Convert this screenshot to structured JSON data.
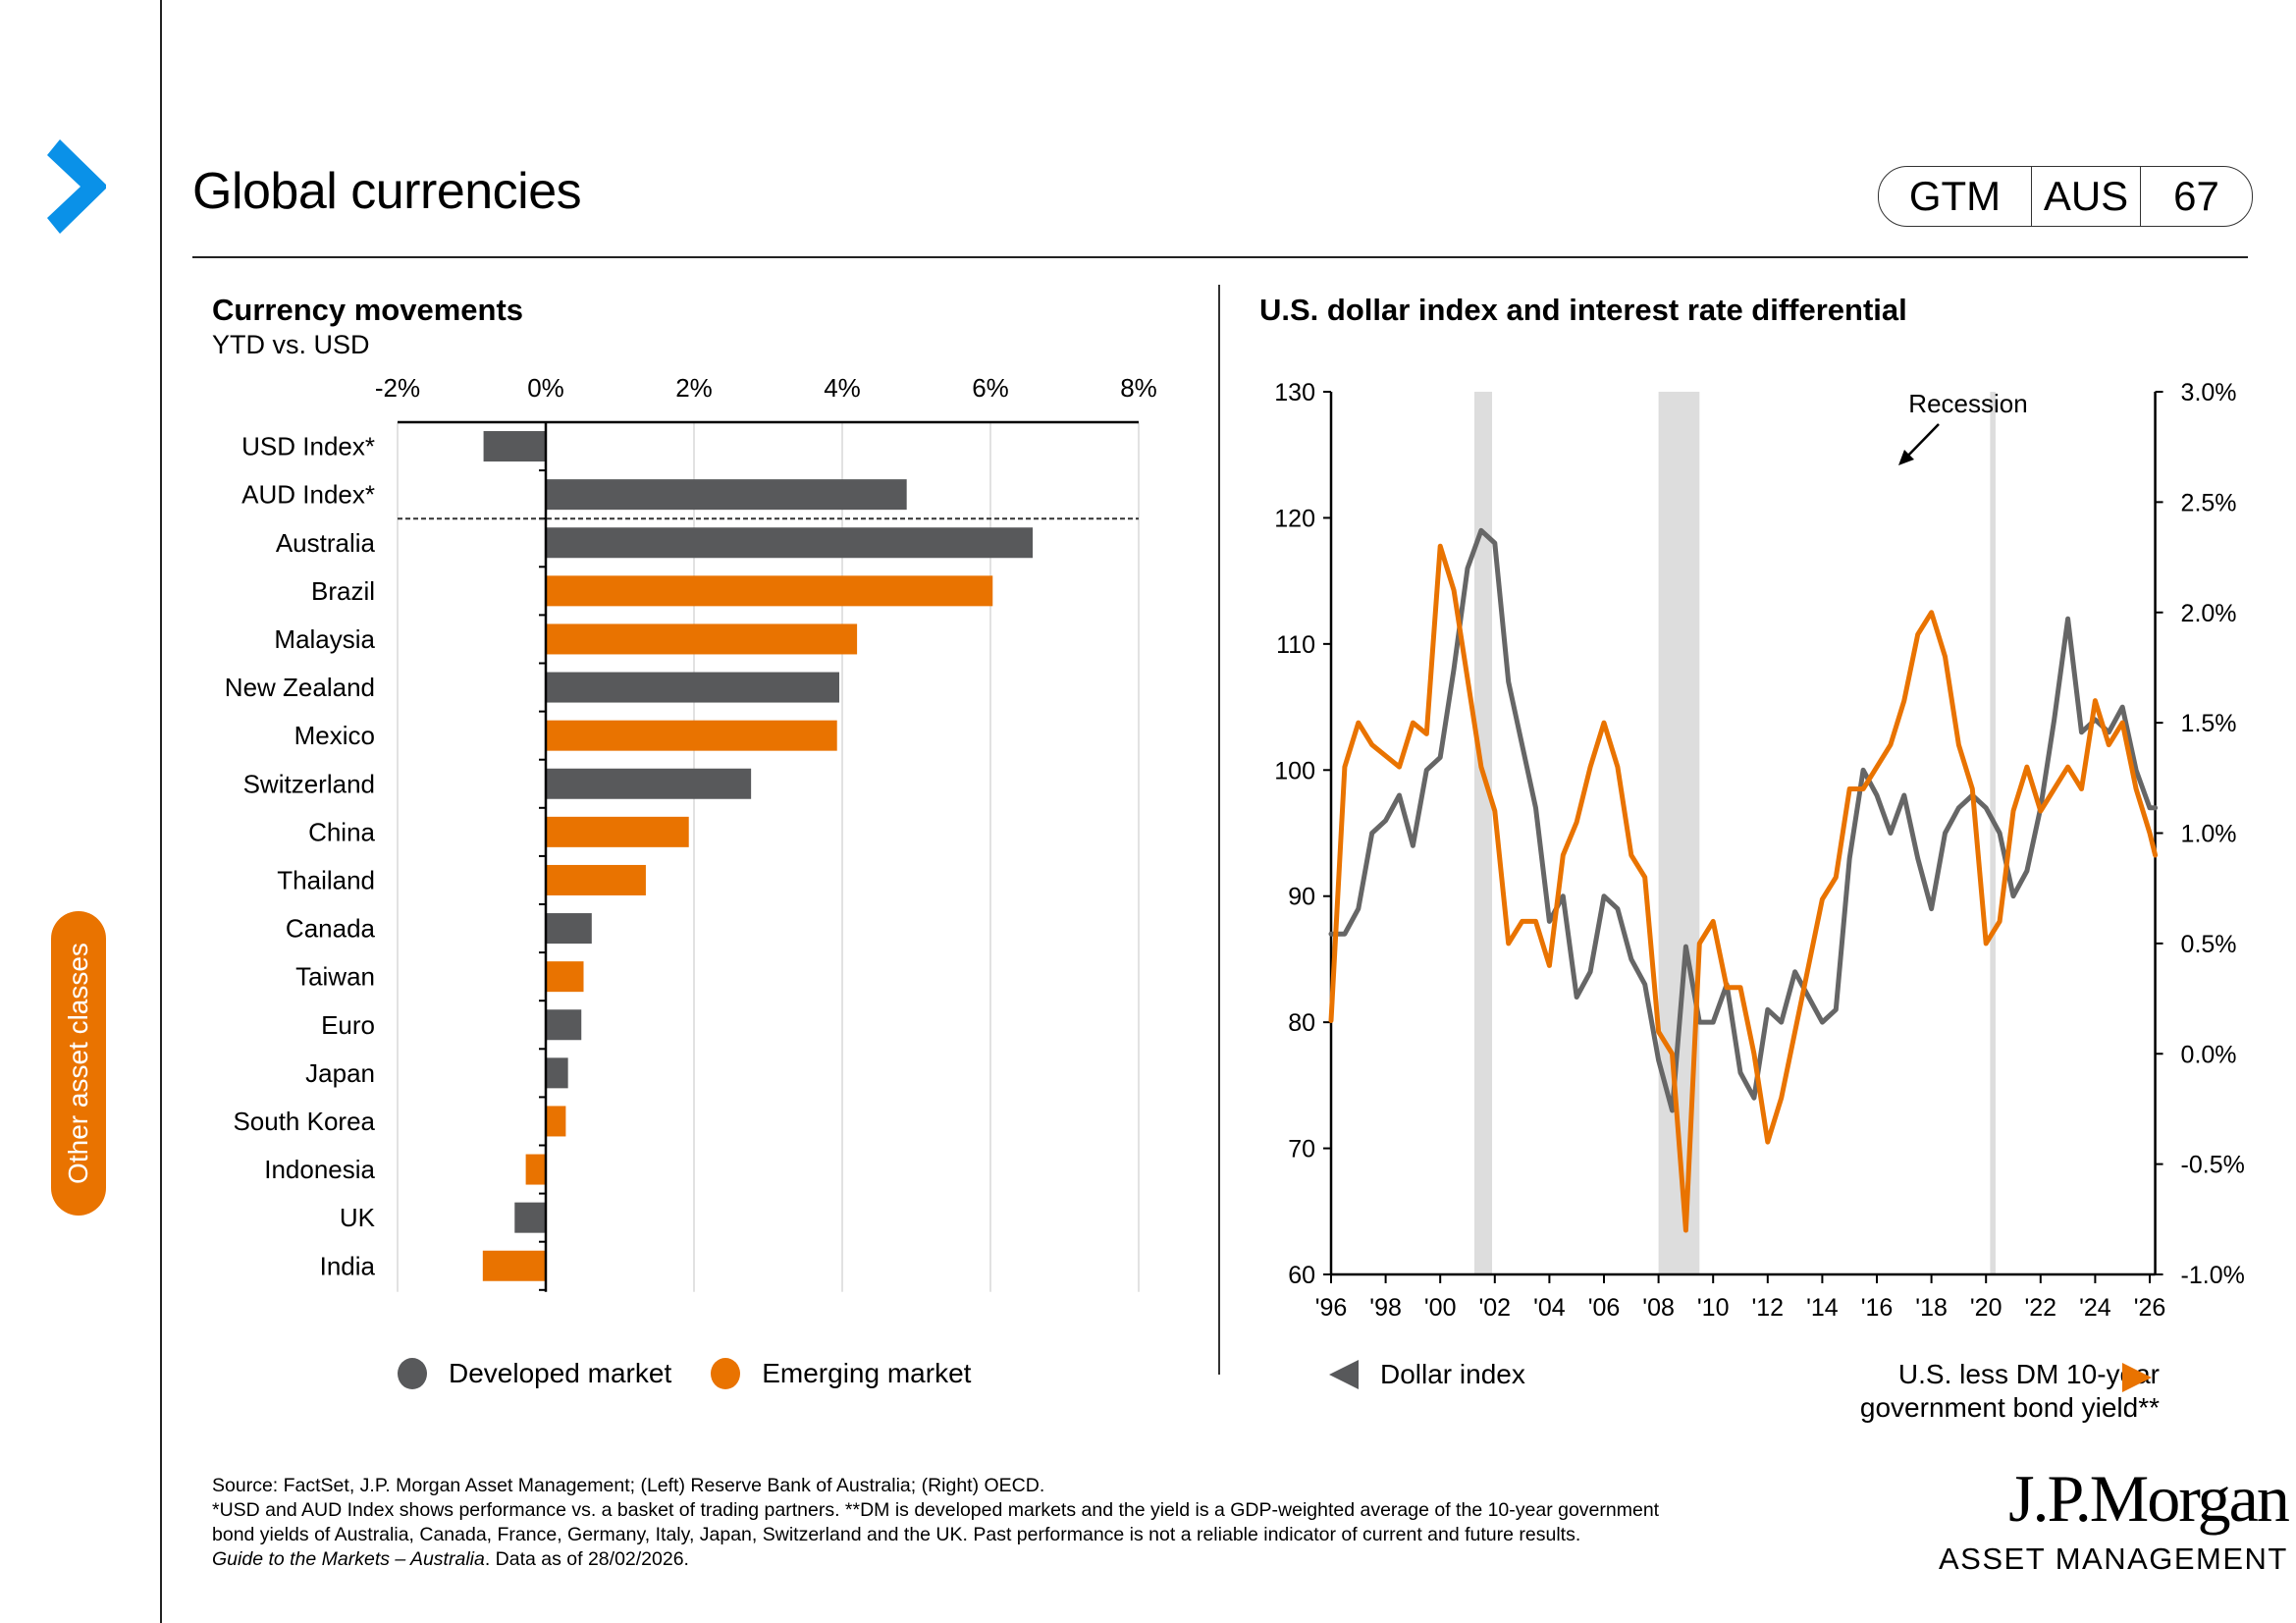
{
  "header": {
    "title": "Global currencies",
    "badge": {
      "series": "GTM",
      "region": "AUS",
      "page": "67"
    }
  },
  "sidebar": {
    "tab_label": "Other asset classes"
  },
  "colors": {
    "developed": "#58595b",
    "emerging": "#e97300",
    "accent_blue": "#0a91e8",
    "recession": "#dddddd",
    "dollar_line": "#666666"
  },
  "left_chart": {
    "title": "Currency movements",
    "subtitle": "YTD vs. USD",
    "legend": [
      {
        "label": "Developed market",
        "color": "#58595b"
      },
      {
        "label": "Emerging market",
        "color": "#e97300"
      }
    ]
  },
  "right_chart": {
    "title": "U.S. dollar index and interest rate differential",
    "annotation": "Recession",
    "legend_left": "Dollar index",
    "legend_right_line1": "U.S. less DM 10-year",
    "legend_right_line2": "government bond yield**"
  },
  "chart_data": [
    {
      "type": "bar",
      "orientation": "horizontal",
      "title": "Currency movements",
      "subtitle": "YTD vs. USD",
      "xlabel": "",
      "ylabel": "",
      "xlim": [
        -2,
        8
      ],
      "x_ticks": [
        "-2%",
        "0%",
        "2%",
        "4%",
        "6%",
        "8%"
      ],
      "x_tick_values": [
        -2,
        0,
        2,
        4,
        6,
        8
      ],
      "grid": true,
      "separator_after_index": 1,
      "categories": [
        "USD Index*",
        "AUD Index*",
        "Australia",
        "Brazil",
        "Malaysia",
        "New Zealand",
        "Mexico",
        "Switzerland",
        "China",
        "Thailand",
        "Canada",
        "Taiwan",
        "Euro",
        "Japan",
        "South Korea",
        "Indonesia",
        "UK",
        "India"
      ],
      "values": [
        -0.84,
        4.87,
        6.57,
        6.03,
        4.2,
        3.96,
        3.93,
        2.77,
        1.93,
        1.35,
        0.62,
        0.51,
        0.48,
        0.3,
        0.27,
        -0.27,
        -0.42,
        -0.85
      ],
      "groups": [
        "Developed market",
        "Developed market",
        "Developed market",
        "Emerging market",
        "Emerging market",
        "Developed market",
        "Emerging market",
        "Developed market",
        "Emerging market",
        "Emerging market",
        "Developed market",
        "Emerging market",
        "Developed market",
        "Developed market",
        "Emerging market",
        "Emerging market",
        "Developed market",
        "Emerging market"
      ],
      "legend": [
        "Developed market",
        "Emerging market"
      ],
      "legend_position": "bottom"
    },
    {
      "type": "line",
      "title": "U.S. dollar index and interest rate differential",
      "x_ticks": [
        "'96",
        "'98",
        "'00",
        "'02",
        "'04",
        "'06",
        "'08",
        "'10",
        "'12",
        "'14",
        "'16",
        "'18",
        "'20",
        "'22",
        "'24",
        "'26"
      ],
      "xlim": [
        1996,
        2026.2
      ],
      "ylim_left": [
        60,
        130
      ],
      "y_ticks_left": [
        "60",
        "70",
        "80",
        "90",
        "100",
        "110",
        "120",
        "130"
      ],
      "y_tick_values_left": [
        60,
        70,
        80,
        90,
        100,
        110,
        120,
        130
      ],
      "ylim_right": [
        -1.0,
        3.0
      ],
      "y_ticks_right": [
        "-1.0%",
        "-0.5%",
        "0.0%",
        "0.5%",
        "1.0%",
        "1.5%",
        "2.0%",
        "2.5%",
        "3.0%"
      ],
      "y_tick_values_right": [
        -1.0,
        -0.5,
        0.0,
        0.5,
        1.0,
        1.5,
        2.0,
        2.5,
        3.0
      ],
      "recessions": [
        [
          2001.25,
          2001.9
        ],
        [
          2008.0,
          2009.5
        ],
        [
          2020.15,
          2020.35
        ]
      ],
      "annotation": "Recession",
      "legend_position": "bottom",
      "series": [
        {
          "name": "Dollar index",
          "axis": "left",
          "color": "#666666",
          "x": [
            1996.0,
            1996.5,
            1997.0,
            1997.5,
            1998.0,
            1998.5,
            1999.0,
            1999.5,
            2000.0,
            2000.5,
            2001.0,
            2001.5,
            2002.0,
            2002.5,
            2003.0,
            2003.5,
            2004.0,
            2004.5,
            2005.0,
            2005.5,
            2006.0,
            2006.5,
            2007.0,
            2007.5,
            2008.0,
            2008.5,
            2009.0,
            2009.5,
            2010.0,
            2010.5,
            2011.0,
            2011.5,
            2012.0,
            2012.5,
            2013.0,
            2013.5,
            2014.0,
            2014.5,
            2015.0,
            2015.5,
            2016.0,
            2016.5,
            2017.0,
            2017.5,
            2018.0,
            2018.5,
            2019.0,
            2019.5,
            2020.0,
            2020.5,
            2021.0,
            2021.5,
            2022.0,
            2022.5,
            2023.0,
            2023.5,
            2024.0,
            2024.5,
            2025.0,
            2025.5,
            2026.0,
            2026.2
          ],
          "y": [
            87,
            87,
            89,
            95,
            96,
            98,
            94,
            100,
            101,
            108,
            116,
            119,
            118,
            107,
            102,
            97,
            88,
            90,
            82,
            84,
            90,
            89,
            85,
            83,
            77,
            73,
            86,
            80,
            80,
            83,
            76,
            74,
            81,
            80,
            84,
            82,
            80,
            81,
            93,
            100,
            98,
            95,
            98,
            93,
            89,
            95,
            97,
            98,
            97,
            95,
            90,
            92,
            97,
            104,
            112,
            103,
            104,
            103,
            105,
            100,
            97,
            97
          ]
        },
        {
          "name": "U.S. less DM 10-year government bond yield**",
          "axis": "right",
          "color": "#e97300",
          "x": [
            1996.0,
            1996.5,
            1997.0,
            1997.5,
            1998.0,
            1998.5,
            1999.0,
            1999.5,
            2000.0,
            2000.5,
            2001.0,
            2001.5,
            2002.0,
            2002.5,
            2003.0,
            2003.5,
            2004.0,
            2004.5,
            2005.0,
            2005.5,
            2006.0,
            2006.5,
            2007.0,
            2007.5,
            2008.0,
            2008.5,
            2009.0,
            2009.5,
            2010.0,
            2010.5,
            2011.0,
            2011.5,
            2012.0,
            2012.5,
            2013.0,
            2013.5,
            2014.0,
            2014.5,
            2015.0,
            2015.5,
            2016.0,
            2016.5,
            2017.0,
            2017.5,
            2018.0,
            2018.5,
            2019.0,
            2019.5,
            2020.0,
            2020.5,
            2021.0,
            2021.5,
            2022.0,
            2022.5,
            2023.0,
            2023.5,
            2024.0,
            2024.5,
            2025.0,
            2025.5,
            2026.0,
            2026.2
          ],
          "y": [
            0.15,
            1.3,
            1.5,
            1.4,
            1.35,
            1.3,
            1.5,
            1.45,
            2.3,
            2.1,
            1.7,
            1.3,
            1.1,
            0.5,
            0.6,
            0.6,
            0.4,
            0.9,
            1.05,
            1.3,
            1.5,
            1.3,
            0.9,
            0.8,
            0.1,
            0.0,
            -0.8,
            0.5,
            0.6,
            0.3,
            0.3,
            0.0,
            -0.4,
            -0.2,
            0.1,
            0.4,
            0.7,
            0.8,
            1.2,
            1.2,
            1.3,
            1.4,
            1.6,
            1.9,
            2.0,
            1.8,
            1.4,
            1.2,
            0.5,
            0.6,
            1.1,
            1.3,
            1.1,
            1.2,
            1.3,
            1.2,
            1.6,
            1.4,
            1.5,
            1.2,
            1.0,
            0.9
          ]
        }
      ]
    }
  ],
  "footer": {
    "source": "Source: FactSet, J.P. Morgan Asset Management; (Left) Reserve Bank of Australia; (Right) OECD.",
    "note1": "*USD and AUD Index shows performance vs. a basket of trading partners. **DM is developed markets and the yield is a GDP-weighted average of the 10-year government",
    "note2": "bond yields of Australia, Canada, France, Germany, Italy, Japan, Switzerland and the UK. Past performance is not a reliable indicator of current and future results.",
    "guide_italic": "Guide to the Markets – Australia",
    "guide_rest": ". Data as of 28/02/2026."
  },
  "logo": {
    "line1": "J.P.Morgan",
    "line2": "ASSET MANAGEMENT"
  }
}
